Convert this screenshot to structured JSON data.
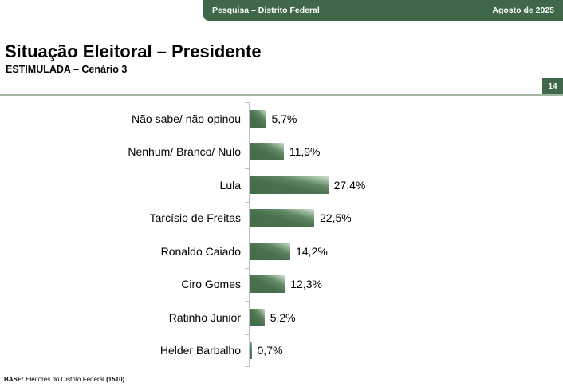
{
  "header": {
    "left": "Pesquisa – Distrito Federal",
    "right": "Agosto de 2025"
  },
  "title": "Situação Eleitoral – Presidente",
  "subtitle": "ESTIMULADA – Cenário 3",
  "page_number": "14",
  "chart_data": {
    "type": "bar",
    "orientation": "horizontal",
    "title": "Situação Eleitoral – Presidente",
    "subtitle": "ESTIMULADA – Cenário 3",
    "categories": [
      "Não sabe/ não opinou",
      "Nenhum/ Branco/ Nulo",
      "Lula",
      "Tarcísio de Freitas",
      "Ronaldo Caiado",
      "Ciro Gomes",
      "Ratinho Junior",
      "Helder Barbalho"
    ],
    "values": [
      5.7,
      11.9,
      27.4,
      22.5,
      14.2,
      12.3,
      5.2,
      0.7
    ],
    "value_labels": [
      "5,7%",
      "11,9%",
      "27,4%",
      "22,5%",
      "14,2%",
      "12,3%",
      "5,2%",
      "0,7%"
    ],
    "unit": "%",
    "legend": false,
    "grid": false,
    "value_axis_visible": false
  },
  "footer": {
    "prefix": "BASE:",
    "body": "Eleitores do Distrito Federal",
    "count": "(1510)"
  },
  "colors": {
    "accent_green": "#3e6847",
    "bar_dark": "#48704e",
    "bar_light": "#d3e2d1",
    "divider": "#a3b7a0",
    "axis": "#b9c2c9"
  }
}
